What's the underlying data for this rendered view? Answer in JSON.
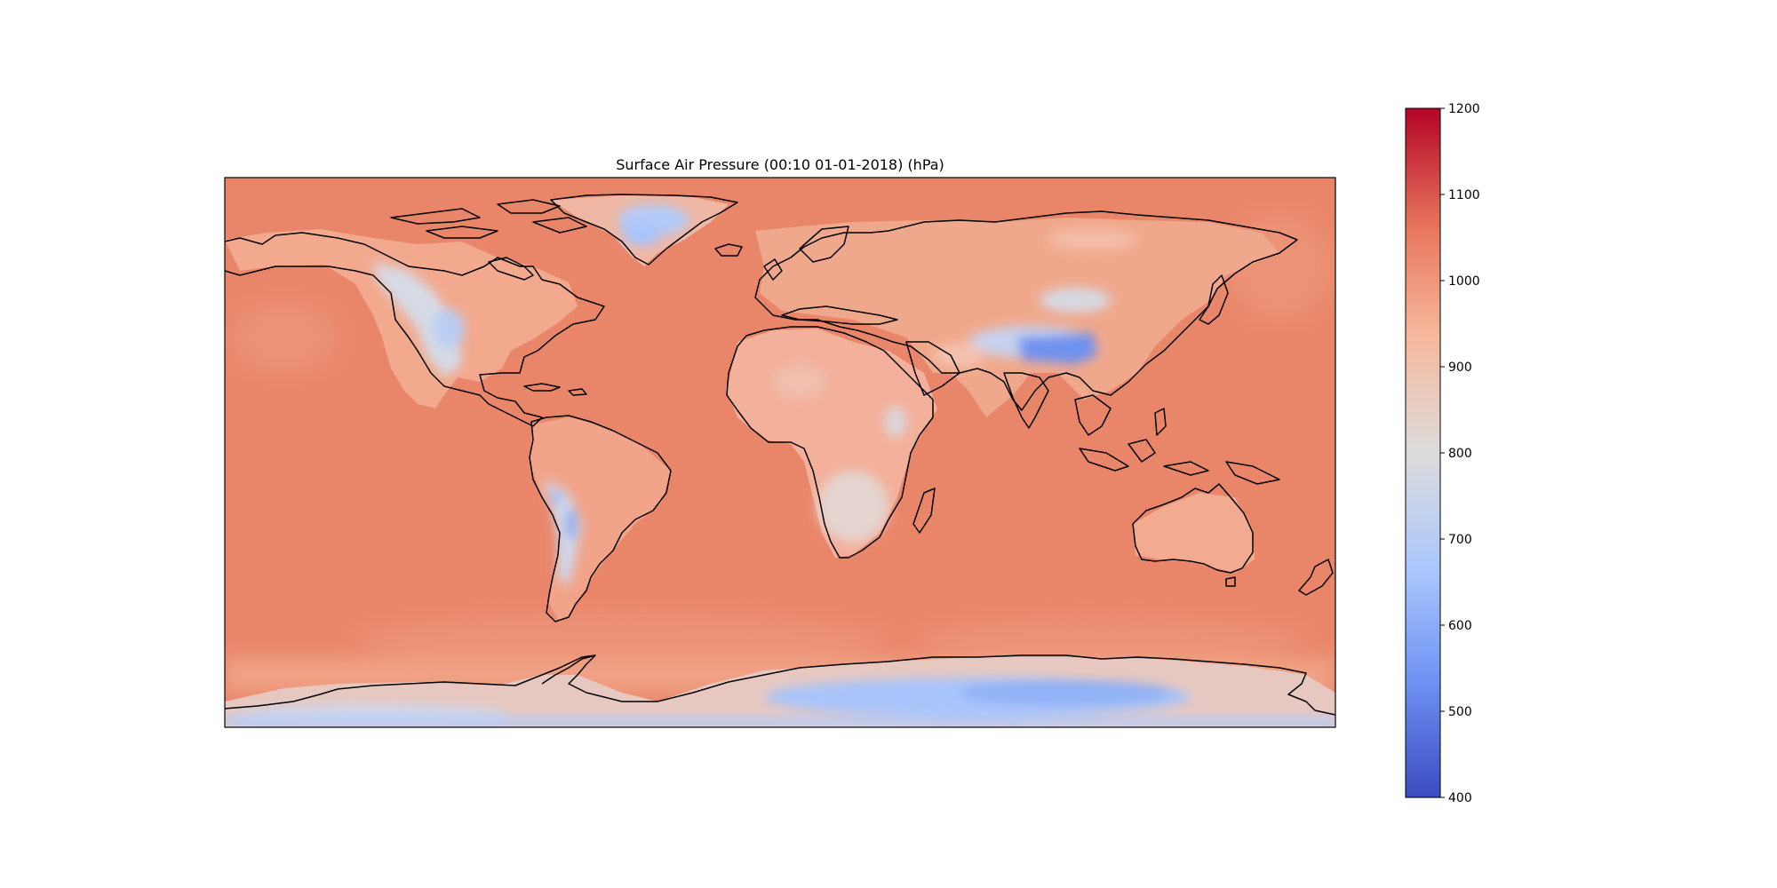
{
  "map": {
    "title": "Surface Air Pressure (00:10 01-01-2018) (hPa)",
    "projection": "PlateCarree",
    "lon_range": [
      -180,
      180
    ],
    "lat_range": [
      -90,
      90
    ],
    "coastlines": true,
    "field": "surface air pressure",
    "units": "hPa",
    "ocean_value": 1010,
    "regions": [
      {
        "name": "Greenland",
        "value": 720
      },
      {
        "name": "Antarctic Plateau",
        "value": 640
      },
      {
        "name": "Tibetan Plateau",
        "value": 590
      },
      {
        "name": "Andes",
        "value": 690
      },
      {
        "name": "Rocky Mountains",
        "value": 800
      },
      {
        "name": "Ethiopian Highlands",
        "value": 820
      },
      {
        "name": "Southern Africa",
        "value": 860
      },
      {
        "name": "Mongolia",
        "value": 860
      },
      {
        "name": "Iranian Plateau",
        "value": 880
      }
    ]
  },
  "colorbar": {
    "cmap": "coolwarm",
    "range": [
      400,
      1200
    ],
    "ticks": [
      "400",
      "500",
      "600",
      "700",
      "800",
      "900",
      "1000",
      "1100",
      "1200"
    ],
    "colors": [
      "#3b4cc0",
      "#6f92f3",
      "#aac7fd",
      "#dddcdc",
      "#f7b89c",
      "#e7745b",
      "#b40426"
    ]
  }
}
